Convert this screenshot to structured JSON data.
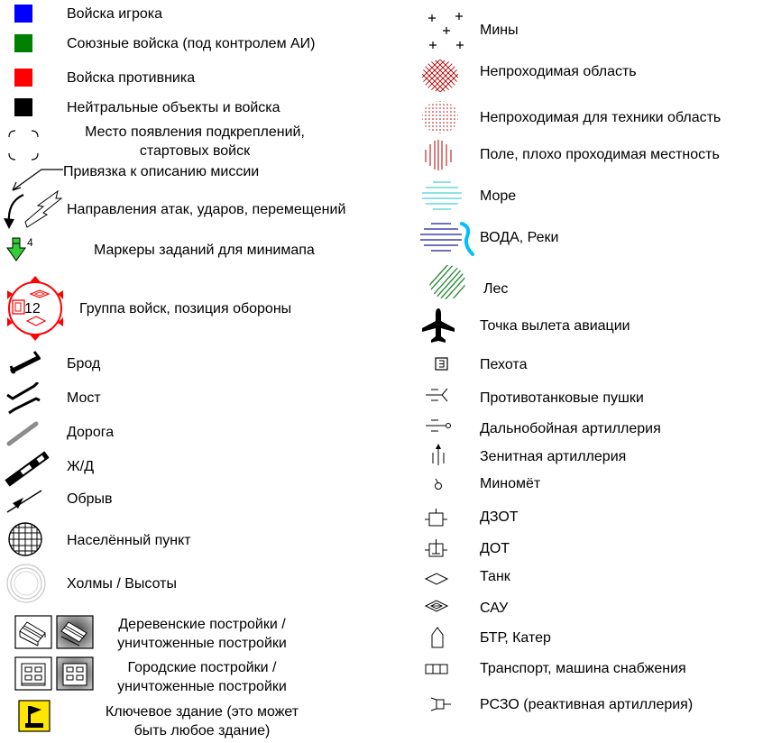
{
  "left": {
    "player_troops": "Войска игрока",
    "allied_troops": "Союзные войска (под контролем АИ)",
    "enemy_troops": "Войска противника",
    "neutral_objects": "Нейтральные объекты и войска",
    "spawn_line1": "Место появления подкреплений,",
    "spawn_line2": "стартовых войск",
    "mission_link": "Привязка к описанию миссии",
    "attack_directions": "Направления атак, ударов, перемещений",
    "minimap_markers": "Маркеры заданий для минимапа",
    "minimap_marker_number": "4",
    "troop_group": "Группа войск, позиция обороны",
    "troop_group_number": "12",
    "ford": "Брод",
    "bridge": "Мост",
    "road": "Дорога",
    "railway": "Ж/Д",
    "cliff": "Обрыв",
    "settlement": "Населённый пункт",
    "hills": "Холмы / Высоты",
    "village_line1": "Деревенские постройки /",
    "village_line2": "уничтоженные постройки",
    "city_line1": "Городские постройки /",
    "city_line2": "уничтоженные постройки",
    "key_line1": "Ключевое здание (это может",
    "key_line2": "быть любое здание)"
  },
  "right": {
    "mines": "Мины",
    "impassable": "Непроходимая область",
    "impassable_vehicles": "Непроходимая для техники область",
    "field": "Поле, плохо проходимая местность",
    "sea": "Море",
    "water": "ВОДА, Реки",
    "forest": "Лес",
    "airfield": "Точка вылета авиации",
    "infantry": "Пехота",
    "antitank": "Противотанковые пушки",
    "long_range_artillery": "Дальнобойная артиллерия",
    "aa_artillery": "Зенитная артиллерия",
    "mortar": "Миномёт",
    "dzot": "ДЗОТ",
    "dot": "ДОТ",
    "tank": "Танк",
    "sau": "САУ",
    "btr": "БТР, Катер",
    "transport": "Транспорт, машина снабжения",
    "rszo": "РСЗО (реактивная артиллерия)"
  },
  "colors": {
    "player": "#0000ff",
    "allied": "#008000",
    "enemy": "#ff0000",
    "neutral": "#000000",
    "water_blue": "#00bfff",
    "sea_cyan": "#4dd0d8",
    "forest_green": "#2e8b3a",
    "hatch_red": "#b00000",
    "marker_green": "#33cc33"
  }
}
